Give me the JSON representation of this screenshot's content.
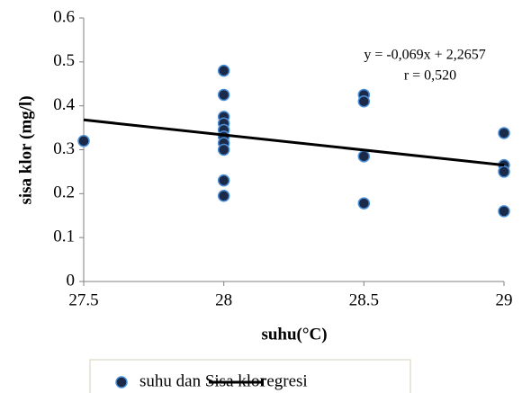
{
  "chart_data": {
    "type": "scatter",
    "x_label": "suhu(°C)",
    "y_label": "sisa klor (mg/l)",
    "annotations": [
      "y = -0,069x + 2,2657",
      "r = 0,520"
    ],
    "xlim": [
      27.5,
      29
    ],
    "xticks": [
      27.5,
      28,
      28.5,
      29
    ],
    "ylim": [
      0,
      0.6
    ],
    "yticks": [
      0,
      0.1,
      0.2,
      0.3,
      0.4,
      0.5,
      0.6
    ],
    "grid": false,
    "legend": "bottom",
    "series": [
      {
        "name": "suhu dan Sisa klor",
        "type": "scatter",
        "color": "#1c2a4a",
        "edge_color": "#4a90d9",
        "x": [
          27.5,
          28,
          28,
          28,
          28,
          28,
          28,
          28,
          28,
          28,
          28,
          28.5,
          28.5,
          28.5,
          28.5,
          29,
          29,
          29,
          29
        ],
        "values": [
          0.32,
          0.48,
          0.425,
          0.375,
          0.36,
          0.345,
          0.33,
          0.315,
          0.3,
          0.23,
          0.195,
          0.425,
          0.41,
          0.285,
          0.178,
          0.338,
          0.265,
          0.25,
          0.16
        ]
      },
      {
        "name": "regresi",
        "type": "line",
        "color": "#000000",
        "x": [
          27.5,
          29
        ],
        "values": [
          0.368,
          0.265
        ]
      }
    ]
  }
}
